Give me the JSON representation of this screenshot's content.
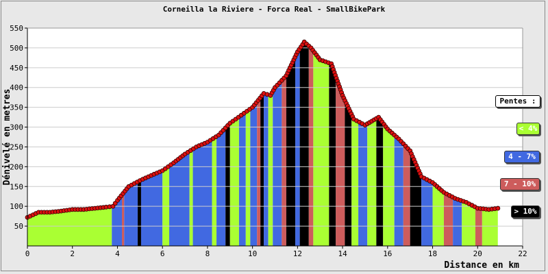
{
  "chart_data": {
    "type": "area",
    "title": "Corneilla la Riviere - Forca Real - SmallBikePark",
    "xlabel": "Distance en km",
    "ylabel": "Dénivelé en metres",
    "xlim": [
      0,
      22
    ],
    "ylim": [
      0,
      550
    ],
    "xticks": [
      0,
      2,
      4,
      6,
      8,
      10,
      12,
      14,
      16,
      18,
      20,
      22
    ],
    "yticks": [
      50,
      100,
      150,
      200,
      250,
      300,
      350,
      400,
      450,
      500,
      550
    ],
    "grid": true,
    "legend_placement": "right",
    "x": [
      0,
      0.5,
      1,
      1.5,
      2,
      2.5,
      3,
      3.5,
      3.8,
      4,
      4.5,
      5,
      5.5,
      6,
      6.5,
      7,
      7.5,
      8,
      8.5,
      9,
      9.5,
      10,
      10.5,
      10.8,
      11,
      11.5,
      12,
      12.3,
      12.6,
      13,
      13.5,
      14,
      14.5,
      15,
      15.3,
      15.6,
      16,
      16.5,
      17,
      17.5,
      18,
      18.5,
      19,
      19.5,
      20,
      20.5,
      20.9
    ],
    "y": [
      72,
      85,
      85,
      88,
      92,
      92,
      95,
      98,
      100,
      115,
      150,
      165,
      178,
      190,
      210,
      232,
      250,
      262,
      280,
      310,
      330,
      350,
      385,
      380,
      400,
      430,
      490,
      515,
      500,
      470,
      460,
      380,
      320,
      305,
      315,
      325,
      295,
      270,
      240,
      175,
      160,
      135,
      120,
      110,
      95,
      92,
      95
    ],
    "segments": [
      {
        "x0": 0,
        "x1": 3.75,
        "cls": "lt4"
      },
      {
        "x0": 3.75,
        "x1": 4.2,
        "cls": "4to7"
      },
      {
        "x0": 4.2,
        "x1": 4.3,
        "cls": "7to10"
      },
      {
        "x0": 4.3,
        "x1": 4.9,
        "cls": "4to7"
      },
      {
        "x0": 4.9,
        "x1": 5.05,
        "cls": "gt10"
      },
      {
        "x0": 5.05,
        "x1": 6,
        "cls": "4to7"
      },
      {
        "x0": 6,
        "x1": 6.3,
        "cls": "lt4"
      },
      {
        "x0": 6.3,
        "x1": 7.2,
        "cls": "4to7"
      },
      {
        "x0": 7.2,
        "x1": 7.35,
        "cls": "lt4"
      },
      {
        "x0": 7.35,
        "x1": 8.2,
        "cls": "4to7"
      },
      {
        "x0": 8.2,
        "x1": 8.4,
        "cls": "lt4"
      },
      {
        "x0": 8.4,
        "x1": 8.8,
        "cls": "4to7"
      },
      {
        "x0": 8.8,
        "x1": 9.0,
        "cls": "gt10"
      },
      {
        "x0": 9.0,
        "x1": 9.4,
        "cls": "lt4"
      },
      {
        "x0": 9.4,
        "x1": 9.7,
        "cls": "4to7"
      },
      {
        "x0": 9.7,
        "x1": 9.9,
        "cls": "lt4"
      },
      {
        "x0": 9.9,
        "x1": 10.2,
        "cls": "4to7"
      },
      {
        "x0": 10.2,
        "x1": 10.35,
        "cls": "7to10"
      },
      {
        "x0": 10.35,
        "x1": 10.5,
        "cls": "gt10"
      },
      {
        "x0": 10.5,
        "x1": 10.7,
        "cls": "4to7"
      },
      {
        "x0": 10.7,
        "x1": 10.9,
        "cls": "lt4"
      },
      {
        "x0": 10.9,
        "x1": 11.3,
        "cls": "4to7"
      },
      {
        "x0": 11.3,
        "x1": 11.5,
        "cls": "7to10"
      },
      {
        "x0": 11.5,
        "x1": 11.9,
        "cls": "gt10"
      },
      {
        "x0": 11.9,
        "x1": 12.1,
        "cls": "4to7"
      },
      {
        "x0": 12.1,
        "x1": 12.5,
        "cls": "gt10"
      },
      {
        "x0": 12.5,
        "x1": 12.7,
        "cls": "7to10"
      },
      {
        "x0": 12.7,
        "x1": 13.4,
        "cls": "lt4"
      },
      {
        "x0": 13.4,
        "x1": 13.7,
        "cls": "gt10"
      },
      {
        "x0": 13.7,
        "x1": 14.1,
        "cls": "7to10"
      },
      {
        "x0": 14.1,
        "x1": 14.4,
        "cls": "gt10"
      },
      {
        "x0": 14.4,
        "x1": 14.7,
        "cls": "lt4"
      },
      {
        "x0": 14.7,
        "x1": 15.1,
        "cls": "4to7"
      },
      {
        "x0": 15.1,
        "x1": 15.5,
        "cls": "lt4"
      },
      {
        "x0": 15.5,
        "x1": 15.8,
        "cls": "gt10"
      },
      {
        "x0": 15.8,
        "x1": 16.3,
        "cls": "lt4"
      },
      {
        "x0": 16.3,
        "x1": 16.7,
        "cls": "4to7"
      },
      {
        "x0": 16.7,
        "x1": 17.0,
        "cls": "7to10"
      },
      {
        "x0": 17.0,
        "x1": 17.5,
        "cls": "gt10"
      },
      {
        "x0": 17.5,
        "x1": 18.0,
        "cls": "4to7"
      },
      {
        "x0": 18.0,
        "x1": 18.5,
        "cls": "lt4"
      },
      {
        "x0": 18.5,
        "x1": 18.9,
        "cls": "7to10"
      },
      {
        "x0": 18.9,
        "x1": 19.3,
        "cls": "4to7"
      },
      {
        "x0": 19.3,
        "x1": 19.9,
        "cls": "lt4"
      },
      {
        "x0": 19.9,
        "x1": 20.2,
        "cls": "7to10"
      },
      {
        "x0": 20.2,
        "x1": 20.9,
        "cls": "lt4"
      }
    ],
    "legend": {
      "title": "Pentes :",
      "entries": [
        {
          "key": "lt4",
          "label": "< 4%",
          "color": "#aaff33",
          "text_color": "#ffffff"
        },
        {
          "key": "4to7",
          "label": "4 - 7%",
          "color": "#4169e1",
          "text_color": "#ffffff"
        },
        {
          "key": "7to10",
          "label": "7 - 10%",
          "color": "#cd5c5c",
          "text_color": "#ffffff"
        },
        {
          "key": "gt10",
          "label": "> 10%",
          "color": "#000000",
          "text_color": "#ffffff"
        }
      ]
    },
    "colors": {
      "marker": "#dd1111",
      "marker_stroke": "#330000",
      "grid": "#cccccc",
      "plot_bg": "#ffffff"
    }
  }
}
